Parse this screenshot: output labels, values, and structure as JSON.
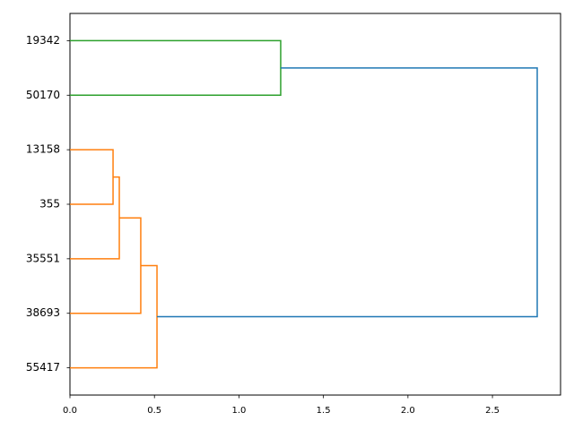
{
  "chart_data": {
    "type": "dendrogram",
    "orientation": "right",
    "leaves": [
      "19342",
      "50170",
      "13158",
      "355",
      "35551",
      "38693",
      "55417"
    ],
    "merges": [
      {
        "children": [
          2,
          3
        ],
        "height": 0.255,
        "color": "#ff7f0e"
      },
      {
        "children": [
          7,
          4
        ],
        "height": 0.292,
        "color": "#ff7f0e"
      },
      {
        "children": [
          8,
          5
        ],
        "height": 0.419,
        "color": "#ff7f0e"
      },
      {
        "children": [
          9,
          6
        ],
        "height": 0.515,
        "color": "#ff7f0e"
      },
      {
        "children": [
          0,
          1
        ],
        "height": 1.247,
        "color": "#2ca02c"
      },
      {
        "children": [
          11,
          10
        ],
        "height": 2.765,
        "color": "#1f77b4"
      }
    ],
    "xlim": [
      0,
      2.903
    ],
    "xticks": [
      {
        "value": 0,
        "label": "0.0"
      },
      0.5,
      {
        "value": 1,
        "label": "1.0"
      },
      1.5,
      {
        "value": 2,
        "label": "2.0"
      },
      2.5
    ]
  }
}
